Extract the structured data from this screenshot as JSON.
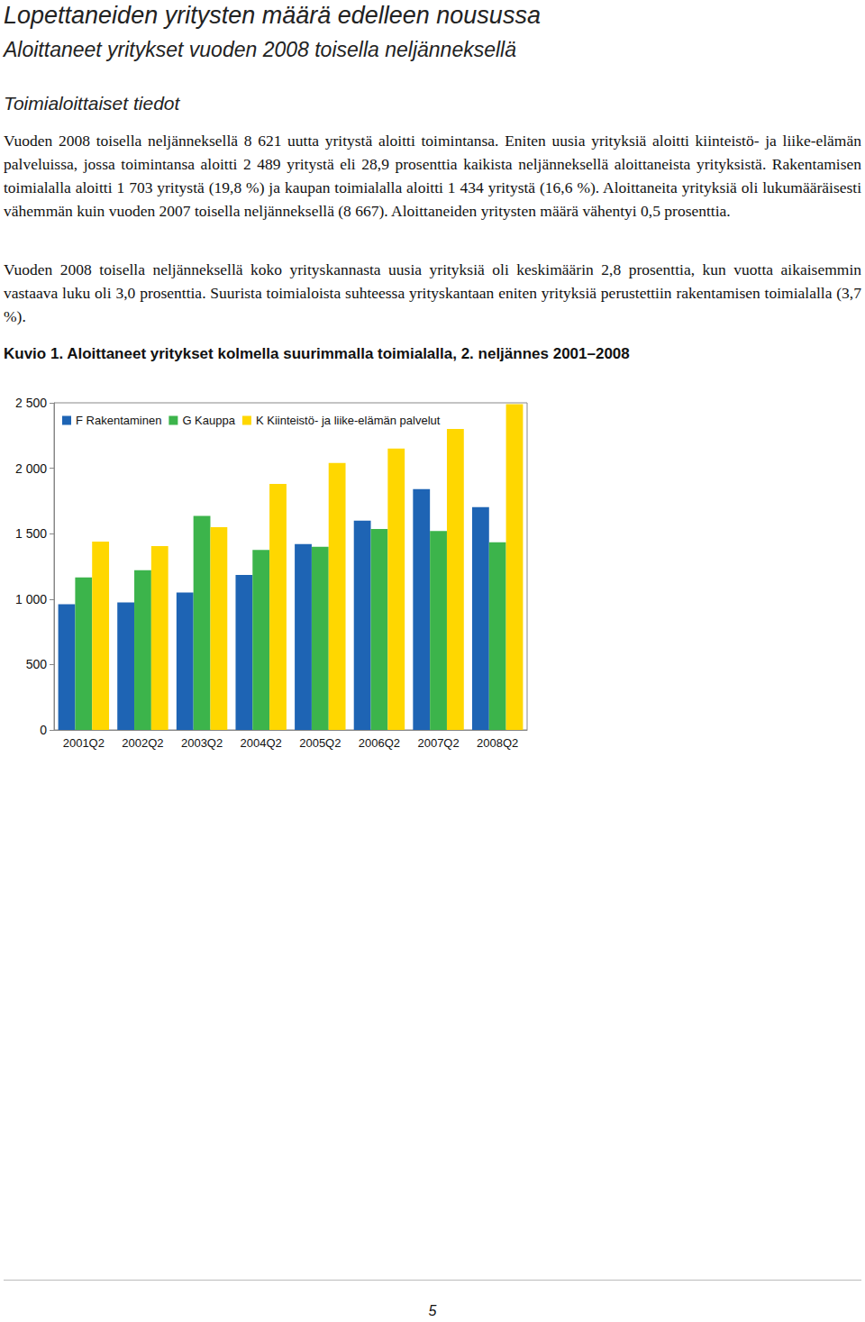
{
  "document": {
    "heading": "Lopettaneiden yritysten määrä edelleen nousussa",
    "subheading": "Aloittaneet yritykset vuoden 2008 toisella neljänneksellä",
    "section": "Toimialoittaiset tiedot",
    "paragraphs": [
      "Vuoden 2008 toisella neljänneksellä 8 621 uutta yritystä aloitti toimintansa. Eniten uusia yrityksiä aloitti kiinteistö- ja liike-elämän palveluissa, jossa toimintansa aloitti 2 489 yritystä eli 28,9 prosenttia kaikista neljänneksellä aloittaneista yrityksistä. Rakentamisen toimialalla aloitti 1 703 yritystä (19,8 %) ja kaupan toimialalla aloitti 1 434 yritystä (16,6 %). Aloittaneita yrityksiä oli lukumääräisesti vähemmän kuin vuoden 2007 toisella neljänneksellä (8 667). Aloittaneiden yritysten määrä vähentyi 0,5 prosenttia.",
      "Vuoden 2008 toisella neljänneksellä koko yrityskannasta uusia yrityksiä oli keskimäärin 2,8 prosenttia, kun vuotta aikaisemmin vastaava luku oli 3,0 prosenttia. Suurista toimialoista suhteessa yrityskantaan eniten yrityksiä perustettiin rakentamisen toimialalla (3,7 %)."
    ],
    "figure_caption": "Kuvio 1. Aloittaneet yritykset kolmella suurimmalla toimialalla, 2. neljännes 2001–2008",
    "page_number": "5"
  },
  "chart_data": {
    "type": "bar",
    "categories": [
      "2001Q2",
      "2002Q2",
      "2003Q2",
      "2004Q2",
      "2005Q2",
      "2006Q2",
      "2007Q2",
      "2008Q2"
    ],
    "series": [
      {
        "name": "F Rakentaminen",
        "color": "#1e64b4",
        "values": [
          960,
          975,
          1050,
          1185,
          1420,
          1600,
          1840,
          1703
        ]
      },
      {
        "name": "G Kauppa",
        "color": "#3cb44b",
        "values": [
          1165,
          1220,
          1635,
          1375,
          1400,
          1535,
          1520,
          1434
        ]
      },
      {
        "name": "K Kiinteistö- ja liike-elämän palvelut",
        "color": "#ffd700",
        "values": [
          1440,
          1405,
          1550,
          1880,
          2040,
          2150,
          2300,
          2489
        ]
      }
    ],
    "ylim": [
      0,
      2500
    ],
    "yticks": [
      0,
      500,
      {
        "value": 1000,
        "label": "1 000"
      },
      {
        "value": 1500,
        "label": "1 500"
      },
      {
        "value": 2000,
        "label": "2 000"
      },
      {
        "value": 2500,
        "label": "2 500"
      }
    ],
    "grid": false,
    "legend": "upper left"
  }
}
